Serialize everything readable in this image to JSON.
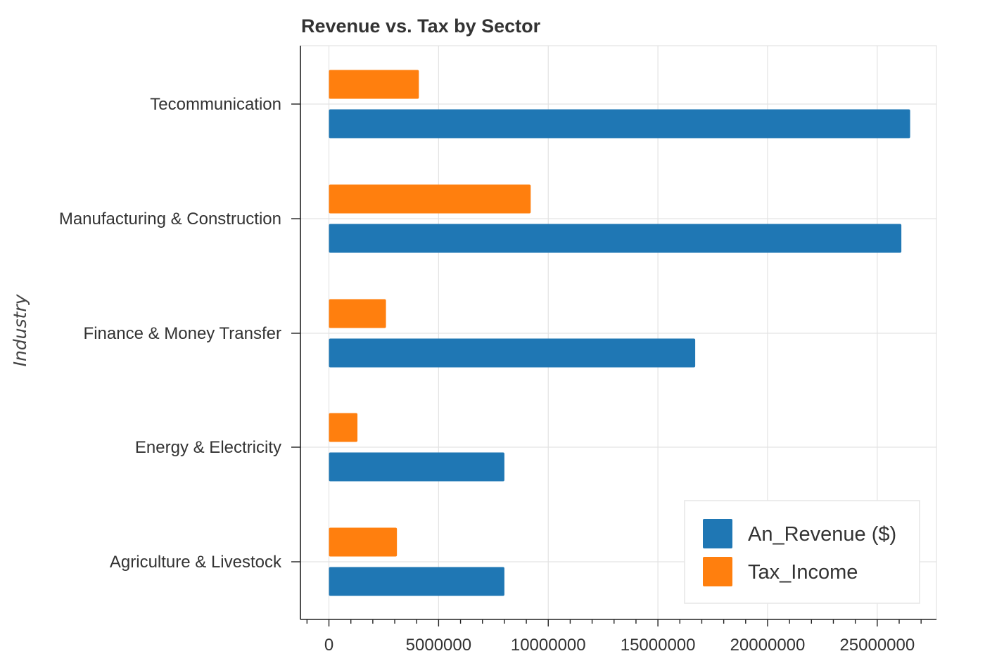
{
  "chart_data": {
    "type": "bar",
    "orientation": "horizontal",
    "title": "Revenue vs. Tax by Sector",
    "xlabel": "",
    "ylabel": "Industry",
    "categories": [
      "Tecommunication",
      "Manufacturing & Construction",
      "Finance & Money Transfer",
      "Energy & Electricity",
      "Agriculture & Livestock"
    ],
    "series": [
      {
        "name": "An_Revenue ($)",
        "color": "#1f77b4",
        "values": [
          26500000,
          26100000,
          16700000,
          8000000,
          8000000
        ]
      },
      {
        "name": "Tax_Income",
        "color": "#ff7f0e",
        "values": [
          4100000,
          9200000,
          2600000,
          1300000,
          3100000
        ]
      }
    ],
    "xticks": [
      "0",
      "5000000",
      "10000000",
      "15000000",
      "20000000",
      "25000000"
    ],
    "xtick_values": [
      0,
      5000000,
      10000000,
      15000000,
      20000000,
      25000000
    ],
    "xlim": [
      -1300000,
      27700000
    ],
    "grid": true,
    "legend_position": "bottom-right"
  }
}
